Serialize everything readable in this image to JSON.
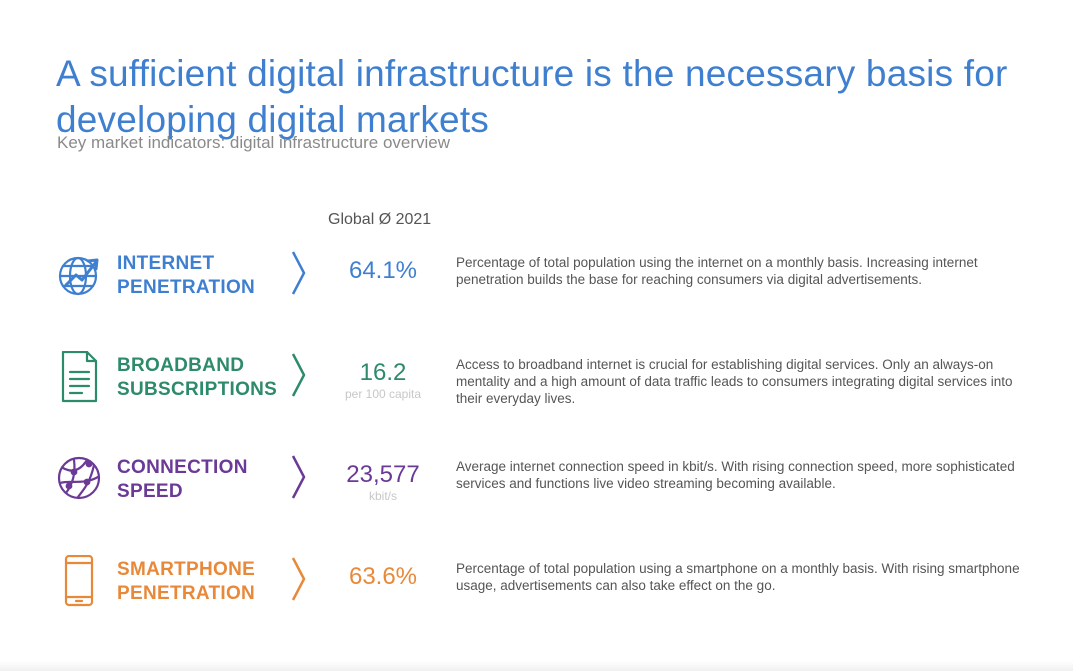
{
  "header": {
    "title": "A sufficient digital infrastructure is the necessary basis for developing digital markets",
    "subtitle": "Key market indicators: digital infrastructure overview",
    "column_label": "Global Ø 2021"
  },
  "indicators": [
    {
      "label_line1": "INTERNET",
      "label_line2": "PENETRATION",
      "value": "64.1%",
      "unit": "",
      "description": "Percentage of total population using the internet on a monthly basis. Increasing internet penetration builds the base for reaching consumers via digital advertisements.",
      "color": "#3f7fd0",
      "icon": "globe-growth-icon"
    },
    {
      "label_line1": "BROADBAND",
      "label_line2": "SUBSCRIPTIONS",
      "value": "16.2",
      "unit": "per 100 capita",
      "description": "Access to broadband internet is crucial for establishing digital services. Only an always-on mentality and a high amount of data traffic leads to consumers integrating digital services into their everyday lives.",
      "color": "#2e8b6a",
      "icon": "document-icon"
    },
    {
      "label_line1": "CONNECTION",
      "label_line2": "SPEED",
      "value": "23,577",
      "unit": "kbit/s",
      "description": "Average internet connection speed in kbit/s. With rising connection speed, more sophisticated services and functions live video streaming becoming available.",
      "color": "#6a3a96",
      "icon": "network-globe-icon"
    },
    {
      "label_line1": "SMARTPHONE",
      "label_line2": "PENETRATION",
      "value": "63.6%",
      "unit": "",
      "description": "Percentage of total population using a smartphone on a monthly basis. With rising smartphone usage, advertisements can also take effect on the go.",
      "color": "#e8893a",
      "icon": "smartphone-icon"
    }
  ]
}
